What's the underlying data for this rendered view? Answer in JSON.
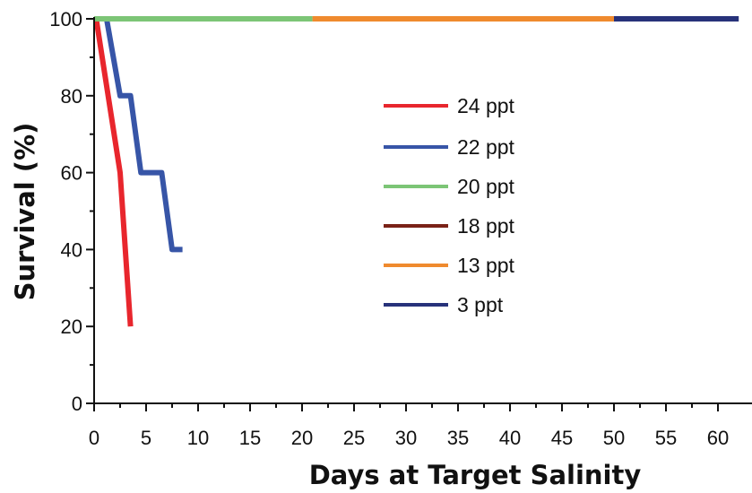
{
  "chart_data": {
    "type": "line",
    "title": "",
    "xlabel": "Days at Target Salinity",
    "ylabel": "Survival (%)",
    "xlim": [
      0,
      62
    ],
    "ylim": [
      0,
      100
    ],
    "x_ticks": [
      "0",
      "5",
      "10",
      "15",
      "20",
      "25",
      "30",
      "35",
      "40",
      "45",
      "50",
      "55",
      "60"
    ],
    "y_ticks": [
      "0",
      "20",
      "40",
      "60",
      "80",
      "100"
    ],
    "grid": false,
    "legend_position": "center",
    "series": [
      {
        "name": "24 ppt",
        "color": "#e8262d",
        "x": [
          0.2,
          2.5,
          3.5
        ],
        "y": [
          100,
          60,
          20
        ]
      },
      {
        "name": "22 ppt",
        "color": "#3755a7",
        "x": [
          1.2,
          2.5,
          3.5,
          4.5,
          6.5,
          7.5,
          8.5
        ],
        "y": [
          100,
          80,
          80,
          60,
          60,
          40,
          40
        ]
      },
      {
        "name": "20 ppt",
        "color": "#7cc576",
        "x": [
          0,
          21
        ],
        "y": [
          100,
          100
        ]
      },
      {
        "name": "18 ppt",
        "color": "#7a2217",
        "x": [],
        "y": []
      },
      {
        "name": "13 ppt",
        "color": "#ef8a2e",
        "x": [
          21,
          50
        ],
        "y": [
          100,
          100
        ]
      },
      {
        "name": "3 ppt",
        "color": "#27327a",
        "x": [
          50,
          62
        ],
        "y": [
          100,
          100
        ]
      }
    ]
  }
}
